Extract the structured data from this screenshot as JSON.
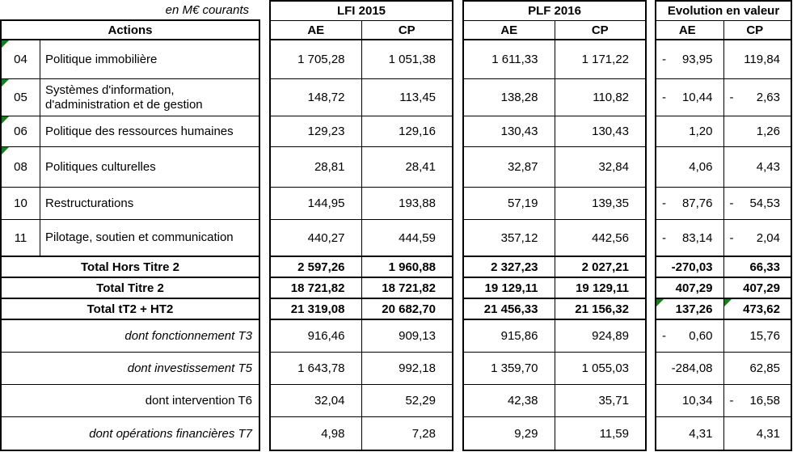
{
  "units_label": "en M€ courants",
  "actions_header": "Actions",
  "groups": [
    {
      "title": "LFI 2015",
      "ae": "AE",
      "cp": "CP"
    },
    {
      "title": "PLF 2016",
      "ae": "AE",
      "cp": "CP"
    },
    {
      "title": "Evolution en valeur",
      "ae": "AE",
      "cp": "CP"
    }
  ],
  "rows": [
    {
      "code": "04",
      "label": "Politique immobilière",
      "lfi_ae": "1 705,28",
      "lfi_cp": "1 051,38",
      "plf_ae": "1 611,33",
      "plf_cp": "1 171,22",
      "evo_ae_s": "-",
      "evo_ae": "93,95",
      "evo_cp_s": "",
      "evo_cp": "119,84"
    },
    {
      "code": "05",
      "label": "Systèmes d'information, d'administration et de gestion",
      "lfi_ae": "148,72",
      "lfi_cp": "113,45",
      "plf_ae": "138,28",
      "plf_cp": "110,82",
      "evo_ae_s": "-",
      "evo_ae": "10,44",
      "evo_cp_s": "-",
      "evo_cp": "2,63"
    },
    {
      "code": "06",
      "label": "Politique des ressources humaines",
      "lfi_ae": "129,23",
      "lfi_cp": "129,16",
      "plf_ae": "130,43",
      "plf_cp": "130,43",
      "evo_ae_s": "",
      "evo_ae": "1,20",
      "evo_cp_s": "",
      "evo_cp": "1,26"
    },
    {
      "code": "08",
      "label": "Politiques culturelles",
      "lfi_ae": "28,81",
      "lfi_cp": "28,41",
      "plf_ae": "32,87",
      "plf_cp": "32,84",
      "evo_ae_s": "",
      "evo_ae": "4,06",
      "evo_cp_s": "",
      "evo_cp": "4,43"
    },
    {
      "code": "10",
      "label": "Restructurations",
      "lfi_ae": "144,95",
      "lfi_cp": "193,88",
      "plf_ae": "57,19",
      "plf_cp": "139,35",
      "evo_ae_s": "-",
      "evo_ae": "87,76",
      "evo_cp_s": "-",
      "evo_cp": "54,53"
    },
    {
      "code": "11",
      "label": "Pilotage, soutien et communication",
      "lfi_ae": "440,27",
      "lfi_cp": "444,59",
      "plf_ae": "357,12",
      "plf_cp": "442,56",
      "evo_ae_s": "-",
      "evo_ae": "83,14",
      "evo_cp_s": "-",
      "evo_cp": "2,04"
    },
    {
      "label": "Total Hors Titre 2",
      "lfi_ae": "2 597,26",
      "lfi_cp": "1 960,88",
      "plf_ae": "2 327,23",
      "plf_cp": "2 027,21",
      "evo_ae_s": "",
      "evo_ae": "-270,03",
      "evo_cp_s": "",
      "evo_cp": "66,33"
    },
    {
      "label": "Total Titre 2",
      "lfi_ae": "18 721,82",
      "lfi_cp": "18 721,82",
      "plf_ae": "19 129,11",
      "plf_cp": "19 129,11",
      "evo_ae_s": "",
      "evo_ae": "407,29",
      "evo_cp_s": "",
      "evo_cp": "407,29"
    },
    {
      "label": "Total tT2 + HT2",
      "lfi_ae": "21 319,08",
      "lfi_cp": "20 682,70",
      "plf_ae": "21 456,33",
      "plf_cp": "21 156,32",
      "evo_ae_s": "",
      "evo_ae": "137,26",
      "evo_cp_s": "",
      "evo_cp": "473,62"
    },
    {
      "label": "dont fonctionnement T3",
      "lfi_ae": "916,46",
      "lfi_cp": "909,13",
      "plf_ae": "915,86",
      "plf_cp": "924,89",
      "evo_ae_s": "-",
      "evo_ae": "0,60",
      "evo_cp_s": "",
      "evo_cp": "15,76"
    },
    {
      "label": "dont investissement T5",
      "lfi_ae": "1 643,78",
      "lfi_cp": "992,18",
      "plf_ae": "1 359,70",
      "plf_cp": "1 055,03",
      "evo_ae_s": "",
      "evo_ae": "-284,08",
      "evo_cp_s": "",
      "evo_cp": "62,85"
    },
    {
      "label": "dont intervention T6",
      "lfi_ae": "32,04",
      "lfi_cp": "52,29",
      "plf_ae": "42,38",
      "plf_cp": "35,71",
      "evo_ae_s": "",
      "evo_ae": "10,34",
      "evo_cp_s": "-",
      "evo_cp": "16,58"
    },
    {
      "label": "dont opérations financières T7",
      "lfi_ae": "4,98",
      "lfi_cp": "7,28",
      "plf_ae": "9,29",
      "plf_cp": "11,59",
      "evo_ae_s": "",
      "evo_ae": "4,31",
      "evo_cp_s": "",
      "evo_cp": "4,31"
    }
  ],
  "indicators": {
    "flag_cells": [
      "action-code-04",
      "action-code-05",
      "action-code-06",
      "action-code-08",
      "total-tt2-ht2-evolution-ae",
      "total-tt2-ht2-evolution-cp"
    ]
  },
  "colors": {
    "flag_green": "#1E7A1E",
    "border": "#000000",
    "background": "#FFFFFF"
  }
}
